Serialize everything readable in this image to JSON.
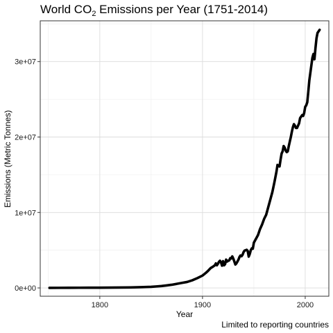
{
  "chart_data": {
    "type": "line",
    "title_main": "World  CO",
    "title_sub": "2",
    "title_rest": "  Emissions per Year (1751-2014)",
    "xlabel": "Year",
    "ylabel": "Emissions (Metric Tonnes)",
    "caption": "Limited to reporting countries",
    "xlim": [
      1742,
      2023
    ],
    "ylim": [
      -1100000,
      35400000
    ],
    "x_ticks": [
      1800,
      1900,
      2000
    ],
    "x_tick_labels": [
      "1800",
      "1900",
      "2000"
    ],
    "y_ticks": [
      0,
      10000000,
      20000000,
      30000000
    ],
    "y_tick_labels": [
      "0e+00",
      "1e+07",
      "2e+07",
      "3e+07"
    ],
    "grid": true,
    "line_color": "#000000",
    "series": [
      {
        "x": [
          1751,
          1760,
          1770,
          1780,
          1790,
          1800,
          1810,
          1820,
          1830,
          1840,
          1850,
          1855,
          1860,
          1865,
          1870,
          1875,
          1880,
          1885,
          1890,
          1895,
          1900,
          1903,
          1905,
          1907,
          1908,
          1910,
          1912,
          1913,
          1914,
          1915,
          1916,
          1917,
          1918,
          1919,
          1920,
          1921,
          1922,
          1923,
          1924,
          1925,
          1926,
          1927,
          1928,
          1929,
          1930,
          1931,
          1932,
          1933,
          1934,
          1935,
          1936,
          1937,
          1938,
          1939,
          1940,
          1941,
          1942,
          1943,
          1944,
          1945,
          1946,
          1947,
          1948,
          1949,
          1950,
          1952,
          1954,
          1956,
          1958,
          1960,
          1962,
          1964,
          1966,
          1968,
          1970,
          1971,
          1972,
          1973,
          1974,
          1975,
          1976,
          1977,
          1978,
          1979,
          1980,
          1981,
          1982,
          1983,
          1984,
          1985,
          1986,
          1987,
          1988,
          1989,
          1990,
          1991,
          1992,
          1993,
          1994,
          1995,
          1996,
          1997,
          1998,
          1999,
          2000,
          2001,
          2002,
          2003,
          2004,
          2005,
          2006,
          2007,
          2008,
          2009,
          2010,
          2011,
          2012,
          2013,
          2014
        ],
        "y": [
          10000,
          15000,
          18000,
          25000,
          30000,
          35000,
          40000,
          55000,
          70000,
          100000,
          150000,
          200000,
          250000,
          330000,
          420000,
          540000,
          670000,
          790000,
          1010000,
          1300000,
          1640000,
          1970000,
          2210000,
          2500000,
          2640000,
          2800000,
          3000000,
          3250000,
          3000000,
          3200000,
          3450000,
          3600000,
          3400000,
          2950000,
          3550000,
          3000000,
          3150000,
          3750000,
          3500000,
          3600000,
          3650000,
          3950000,
          3900000,
          4180000,
          3880000,
          3500000,
          3100000,
          3250000,
          3500000,
          3750000,
          4100000,
          4300000,
          4200000,
          4400000,
          4750000,
          4950000,
          5000000,
          5050000,
          4900000,
          4150000,
          4500000,
          5000000,
          5250000,
          5200000,
          6000000,
          6500000,
          7000000,
          7800000,
          8400000,
          9150000,
          9700000,
          10700000,
          11700000,
          12700000,
          14000000,
          14700000,
          15400000,
          16300000,
          16150000,
          16100000,
          17000000,
          17800000,
          18100000,
          18800000,
          18600000,
          18200000,
          18000000,
          18100000,
          18800000,
          19400000,
          20000000,
          20700000,
          21300000,
          21700000,
          21500000,
          21200000,
          21200000,
          21500000,
          21800000,
          22500000,
          22700000,
          22900000,
          22800000,
          23200000,
          24000000,
          24200000,
          24600000,
          26000000,
          27500000,
          28500000,
          29500000,
          30500000,
          31000000,
          30300000,
          31800000,
          33100000,
          33800000,
          34000000,
          34200000
        ]
      }
    ]
  }
}
